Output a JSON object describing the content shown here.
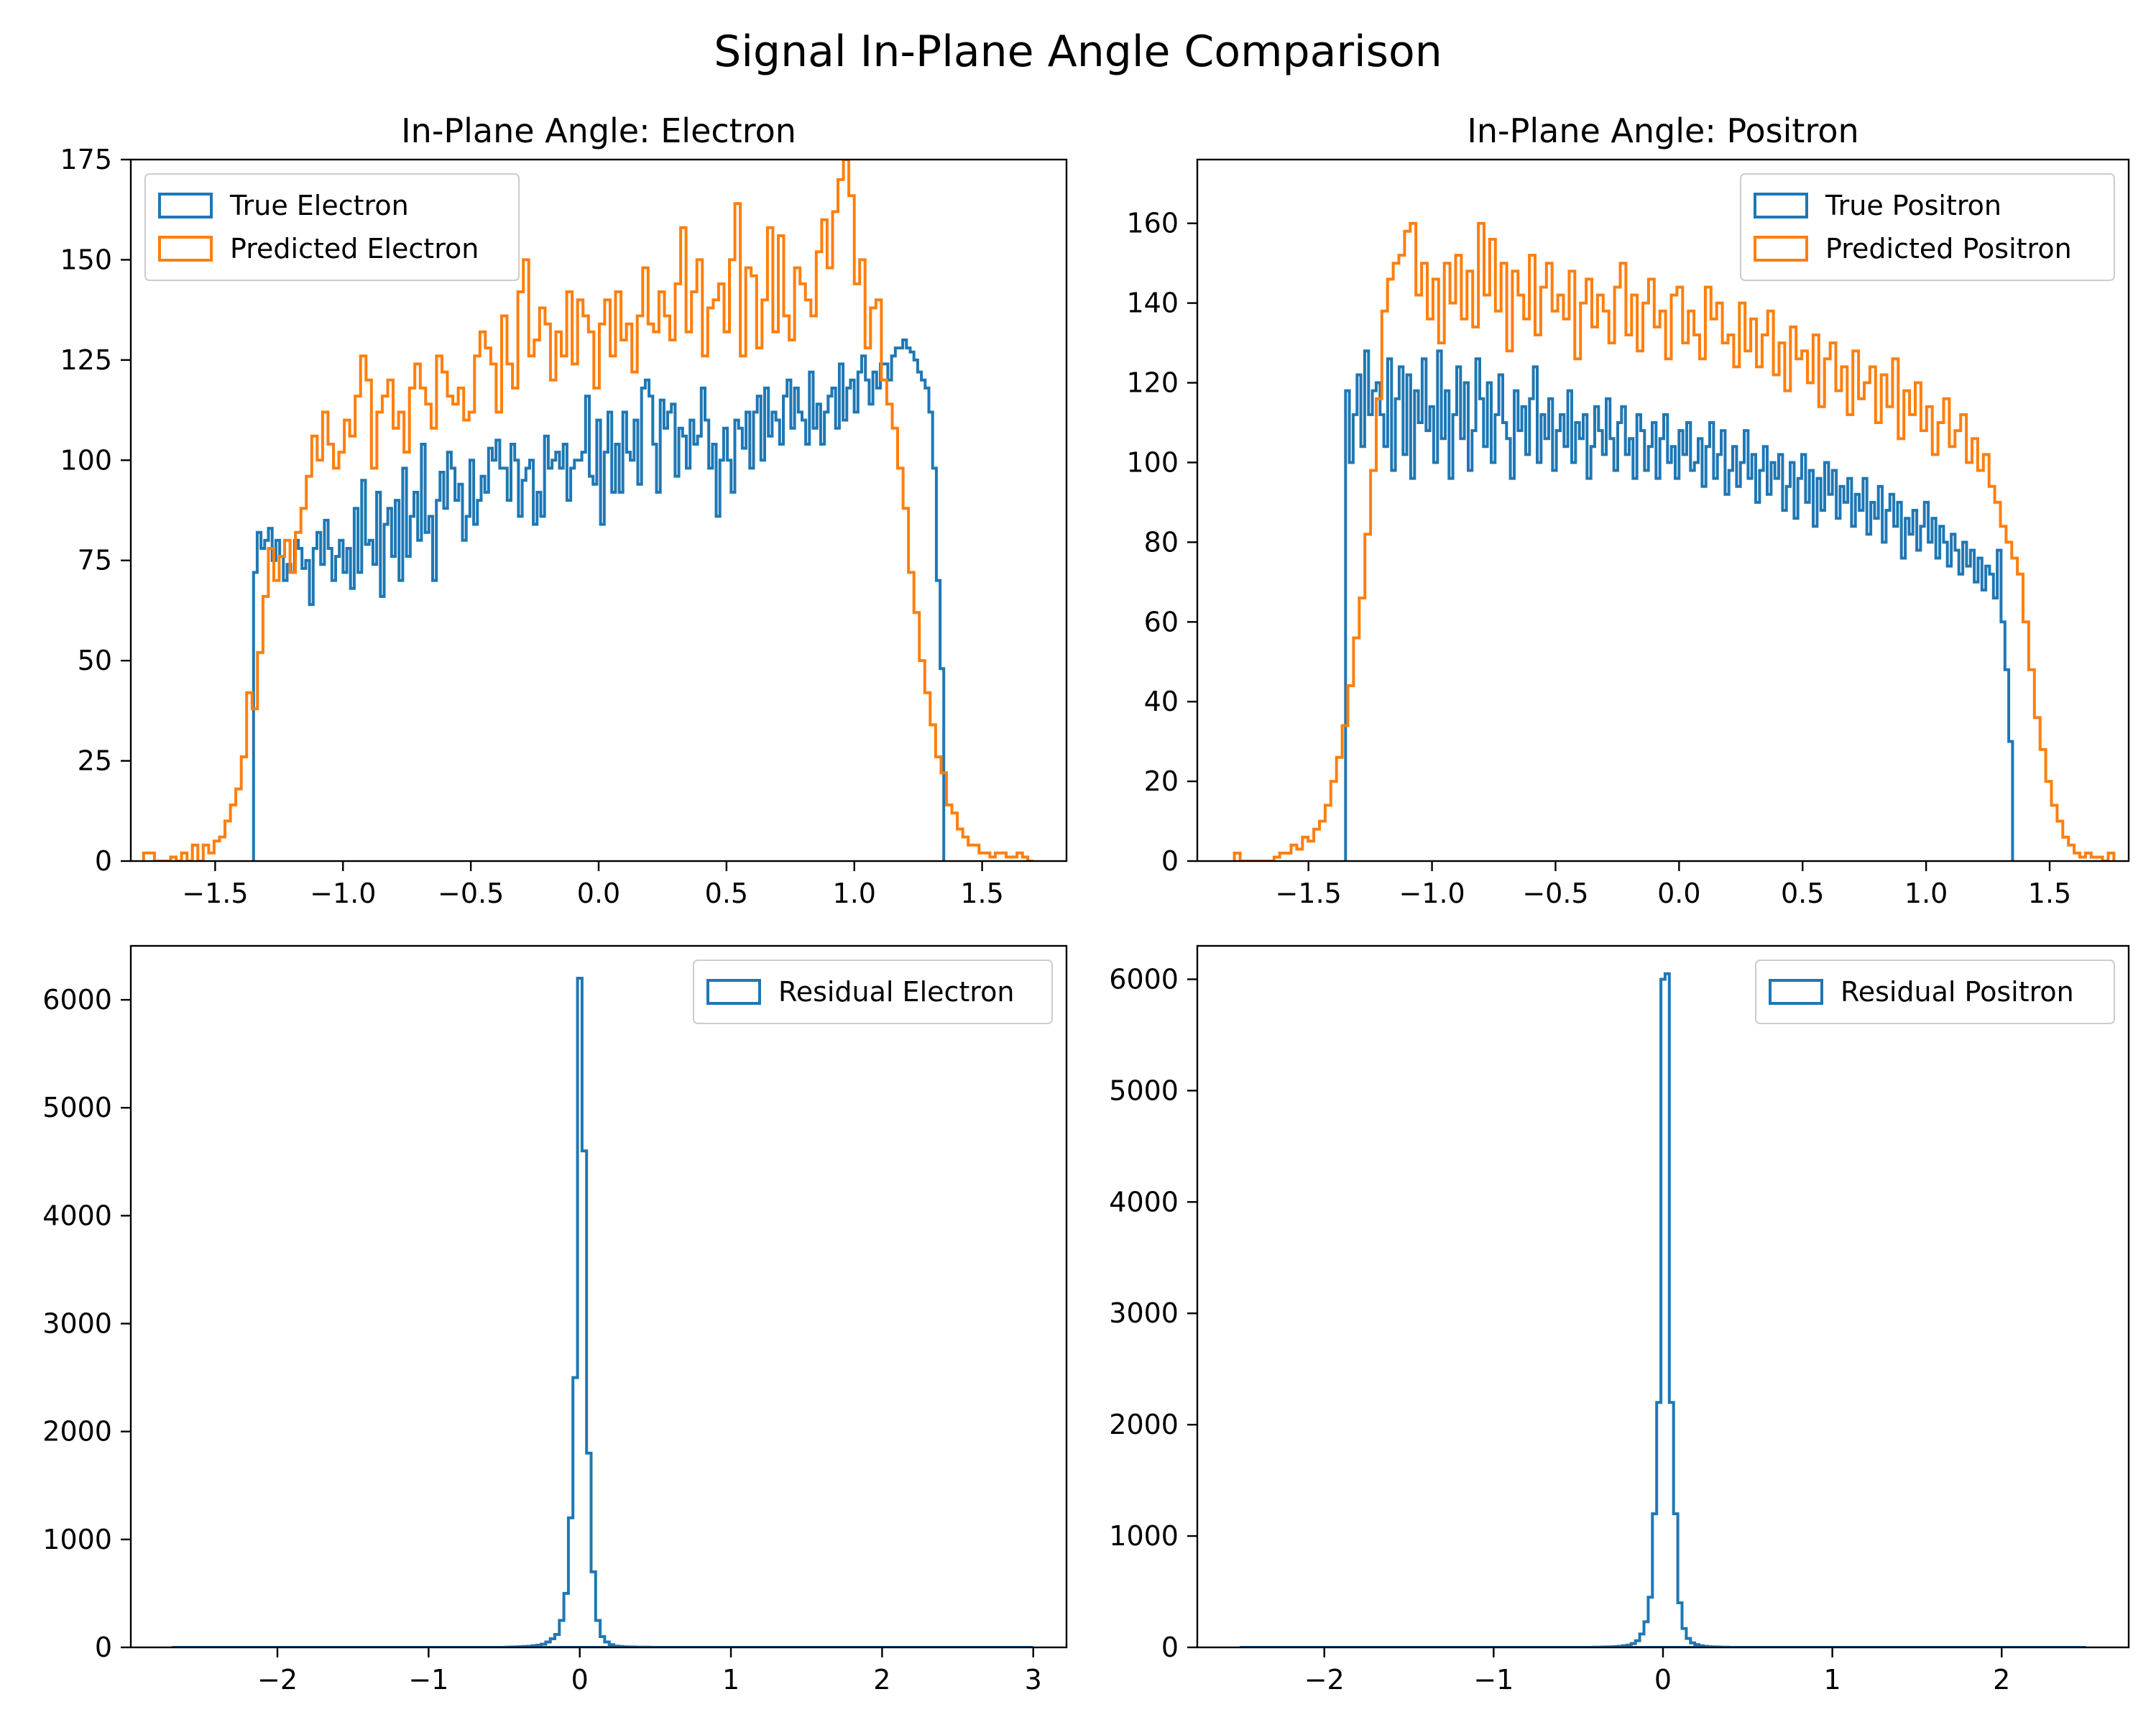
{
  "suptitle": "Signal In-Plane Angle Comparison",
  "colors": {
    "true": "#1f77b4",
    "pred": "#ff7f0e",
    "residual": "#1f77b4"
  },
  "chart_data": [
    {
      "id": "electron",
      "type": "histogram",
      "title": "In-Plane Angle: Electron",
      "xlim": [
        -1.83,
        1.83
      ],
      "ylim": [
        0,
        175
      ],
      "xticks": [
        -1.5,
        -1.0,
        -0.5,
        0.0,
        0.5,
        1.0,
        1.5
      ],
      "xtick_labels": [
        "−1.5",
        "−1.0",
        "−0.5",
        "0.0",
        "0.5",
        "1.0",
        "1.5"
      ],
      "yticks": [
        0,
        25,
        50,
        75,
        100,
        125,
        150,
        175
      ],
      "ytick_labels": [
        "0",
        "25",
        "50",
        "75",
        "100",
        "125",
        "150",
        "175"
      ],
      "legend": "upper-left",
      "series": [
        {
          "name": "True Electron",
          "color_key": "true",
          "x_range": [
            -1.35,
            1.35
          ],
          "counts": [
            72,
            82,
            78,
            80,
            83,
            75,
            80,
            76,
            70,
            74,
            72,
            80,
            78,
            73,
            75,
            64,
            78,
            82,
            74,
            85,
            78,
            70,
            76,
            80,
            72,
            78,
            68,
            88,
            72,
            95,
            79,
            80,
            74,
            92,
            66,
            84,
            88,
            76,
            90,
            70,
            98,
            76,
            86,
            92,
            80,
            104,
            82,
            86,
            70,
            90,
            97,
            88,
            102,
            98,
            90,
            94,
            80,
            86,
            100,
            84,
            90,
            96,
            92,
            103,
            100,
            105,
            98,
            98,
            90,
            104,
            100,
            86,
            95,
            98,
            100,
            84,
            92,
            86,
            106,
            98,
            100,
            102,
            98,
            104,
            90,
            98,
            100,
            100,
            102,
            116,
            96,
            94,
            110,
            84,
            102,
            112,
            92,
            104,
            92,
            112,
            102,
            100,
            110,
            94,
            118,
            120,
            116,
            104,
            92,
            115,
            108,
            112,
            114,
            96,
            108,
            106,
            98,
            110,
            104,
            106,
            118,
            110,
            98,
            104,
            86,
            100,
            108,
            100,
            92,
            110,
            108,
            103,
            112,
            98,
            112,
            116,
            100,
            118,
            106,
            112,
            110,
            104,
            116,
            120,
            108,
            118,
            112,
            110,
            104,
            122,
            108,
            114,
            104,
            112,
            116,
            118,
            108,
            124,
            110,
            118,
            120,
            112,
            122,
            126,
            120,
            114,
            122,
            118,
            124,
            124,
            120,
            126,
            128,
            128,
            130,
            128,
            127,
            125,
            122,
            120,
            118,
            112,
            98,
            70,
            48
          ]
        },
        {
          "name": "Predicted Electron",
          "color_key": "pred",
          "x_range": [
            -1.78,
            1.7
          ],
          "counts": [
            2,
            2,
            0,
            0,
            0,
            1,
            0,
            2,
            0,
            4,
            0,
            4,
            2,
            5,
            6,
            10,
            14,
            18,
            26,
            42,
            38,
            52,
            66,
            78,
            70,
            76,
            80,
            72,
            82,
            88,
            96,
            106,
            100,
            112,
            104,
            98,
            102,
            110,
            106,
            116,
            126,
            120,
            98,
            112,
            116,
            120,
            108,
            112,
            102,
            118,
            124,
            118,
            114,
            108,
            126,
            122,
            116,
            114,
            118,
            110,
            112,
            126,
            132,
            128,
            124,
            112,
            136,
            124,
            118,
            142,
            150,
            126,
            130,
            138,
            134,
            120,
            132,
            126,
            142,
            124,
            140,
            136,
            132,
            118,
            134,
            140,
            126,
            142,
            130,
            134,
            122,
            136,
            148,
            134,
            132,
            142,
            136,
            130,
            144,
            158,
            132,
            142,
            150,
            126,
            138,
            140,
            144,
            132,
            150,
            164,
            126,
            148,
            146,
            128,
            140,
            158,
            132,
            156,
            136,
            130,
            148,
            144,
            140,
            136,
            152,
            160,
            148,
            162,
            170,
            175,
            166,
            144,
            150,
            128,
            138,
            140,
            120,
            114,
            108,
            98,
            88,
            72,
            62,
            50,
            42,
            34,
            26,
            22,
            14,
            12,
            8,
            6,
            4,
            4,
            2,
            2,
            1,
            2,
            2,
            1,
            1,
            2,
            1,
            0
          ]
        }
      ]
    },
    {
      "id": "positron",
      "type": "histogram",
      "title": "In-Plane Angle: Positron",
      "xlim": [
        -1.95,
        1.82
      ],
      "ylim": [
        0,
        176
      ],
      "xticks": [
        -1.5,
        -1.0,
        -0.5,
        0.0,
        0.5,
        1.0,
        1.5
      ],
      "xtick_labels": [
        "−1.5",
        "−1.0",
        "−0.5",
        "0.0",
        "0.5",
        "1.0",
        "1.5"
      ],
      "yticks": [
        0,
        20,
        40,
        60,
        80,
        100,
        120,
        140,
        160
      ],
      "ytick_labels": [
        "0",
        "20",
        "40",
        "60",
        "80",
        "100",
        "120",
        "140",
        "160"
      ],
      "legend": "upper-right",
      "series": [
        {
          "name": "True Positron",
          "color_key": "true",
          "x_range": [
            -1.35,
            1.35
          ],
          "counts": [
            118,
            100,
            112,
            122,
            104,
            128,
            112,
            118,
            120,
            112,
            104,
            126,
            98,
            116,
            124,
            102,
            122,
            96,
            118,
            110,
            126,
            108,
            114,
            100,
            128,
            106,
            118,
            96,
            112,
            124,
            106,
            120,
            98,
            108,
            126,
            116,
            104,
            120,
            100,
            112,
            122,
            110,
            106,
            96,
            118,
            108,
            114,
            102,
            116,
            124,
            100,
            112,
            106,
            116,
            98,
            108,
            112,
            104,
            118,
            100,
            110,
            106,
            112,
            96,
            104,
            114,
            108,
            102,
            116,
            106,
            98,
            110,
            114,
            102,
            106,
            96,
            112,
            108,
            98,
            104,
            110,
            96,
            106,
            112,
            100,
            104,
            96,
            108,
            102,
            110,
            98,
            100,
            106,
            94,
            104,
            110,
            96,
            102,
            108,
            92,
            98,
            104,
            94,
            100,
            108,
            96,
            102,
            90,
            98,
            104,
            92,
            100,
            96,
            102,
            88,
            94,
            100,
            86,
            96,
            102,
            90,
            98,
            84,
            96,
            88,
            100,
            92,
            98,
            86,
            94,
            90,
            96,
            84,
            92,
            88,
            96,
            82,
            90,
            86,
            94,
            80,
            88,
            92,
            84,
            90,
            76,
            86,
            82,
            88,
            78,
            84,
            90,
            80,
            86,
            76,
            84,
            80,
            74,
            82,
            78,
            72,
            80,
            74,
            78,
            70,
            76,
            68,
            74,
            72,
            66,
            78,
            60,
            48,
            30
          ]
        },
        {
          "name": "Predicted Positron",
          "color_key": "pred",
          "x_range": [
            -1.8,
            1.76
          ],
          "counts": [
            2,
            0,
            0,
            0,
            0,
            0,
            0,
            1,
            2,
            2,
            4,
            3,
            6,
            5,
            8,
            10,
            14,
            20,
            26,
            34,
            44,
            56,
            66,
            82,
            98,
            116,
            138,
            146,
            150,
            152,
            158,
            160,
            142,
            150,
            136,
            146,
            130,
            150,
            140,
            152,
            136,
            148,
            134,
            160,
            142,
            156,
            138,
            150,
            128,
            148,
            142,
            136,
            152,
            132,
            144,
            150,
            138,
            142,
            136,
            148,
            126,
            140,
            146,
            134,
            142,
            138,
            130,
            144,
            150,
            132,
            142,
            128,
            140,
            146,
            134,
            138,
            126,
            142,
            144,
            130,
            138,
            132,
            126,
            144,
            136,
            140,
            130,
            132,
            124,
            140,
            128,
            136,
            124,
            132,
            138,
            122,
            130,
            118,
            134,
            126,
            128,
            120,
            132,
            114,
            126,
            130,
            118,
            124,
            112,
            128,
            116,
            120,
            124,
            110,
            122,
            114,
            126,
            106,
            118,
            112,
            120,
            108,
            114,
            102,
            110,
            116,
            104,
            108,
            112,
            100,
            106,
            98,
            102,
            94,
            90,
            84,
            80,
            76,
            72,
            60,
            48,
            36,
            28,
            20,
            14,
            10,
            6,
            4,
            2,
            1,
            2,
            1,
            1,
            0,
            2
          ]
        }
      ]
    },
    {
      "id": "residual-electron",
      "type": "histogram",
      "title": "",
      "xlim": [
        -2.97,
        3.22
      ],
      "ylim": [
        0,
        6500
      ],
      "xticks": [
        -2,
        -1,
        0,
        1,
        2,
        3
      ],
      "xtick_labels": [
        "−2",
        "−1",
        "0",
        "1",
        "2",
        "3"
      ],
      "yticks": [
        0,
        1000,
        2000,
        3000,
        4000,
        5000,
        6000
      ],
      "ytick_labels": [
        "0",
        "1000",
        "2000",
        "3000",
        "4000",
        "5000",
        "6000"
      ],
      "legend": "upper-right",
      "series": [
        {
          "name": "Residual Electron",
          "color_key": "residual",
          "bin_width": 0.03,
          "x": [
            -0.48,
            -0.45,
            -0.42,
            -0.39,
            -0.36,
            -0.33,
            -0.3,
            -0.27,
            -0.24,
            -0.21,
            -0.18,
            -0.15,
            -0.12,
            -0.09,
            -0.06,
            -0.03,
            0.0,
            0.03,
            0.06,
            0.09,
            0.12,
            0.15,
            0.18,
            0.21,
            0.24,
            0.27,
            0.3,
            0.33,
            0.36,
            0.39,
            0.42,
            0.45
          ],
          "counts": [
            2,
            3,
            4,
            6,
            8,
            10,
            15,
            20,
            30,
            50,
            80,
            120,
            250,
            500,
            1200,
            2500,
            6200,
            4600,
            1800,
            700,
            250,
            100,
            50,
            25,
            12,
            8,
            5,
            4,
            3,
            2,
            2,
            1
          ],
          "baseline_range": [
            -2.7,
            3.0
          ]
        }
      ]
    },
    {
      "id": "residual-positron",
      "type": "histogram",
      "title": "",
      "xlim": [
        -2.75,
        2.75
      ],
      "ylim": [
        0,
        6300
      ],
      "xticks": [
        -2,
        -1,
        0,
        1,
        2
      ],
      "xtick_labels": [
        "−2",
        "−1",
        "0",
        "1",
        "2"
      ],
      "yticks": [
        0,
        1000,
        2000,
        3000,
        4000,
        5000,
        6000
      ],
      "ytick_labels": [
        "0",
        "1000",
        "2000",
        "3000",
        "4000",
        "5000",
        "6000"
      ],
      "legend": "upper-right",
      "series": [
        {
          "name": "Residual Positron",
          "color_key": "residual",
          "bin_width": 0.025,
          "x": [
            -0.4,
            -0.375,
            -0.35,
            -0.325,
            -0.3,
            -0.275,
            -0.25,
            -0.225,
            -0.2,
            -0.175,
            -0.15,
            -0.125,
            -0.1,
            -0.075,
            -0.05,
            -0.025,
            0.0,
            0.025,
            0.05,
            0.075,
            0.1,
            0.125,
            0.15,
            0.175,
            0.2,
            0.225,
            0.25,
            0.275,
            0.3,
            0.325,
            0.35,
            0.375
          ],
          "counts": [
            2,
            2,
            3,
            4,
            5,
            7,
            10,
            14,
            20,
            35,
            60,
            120,
            230,
            450,
            1200,
            2200,
            6000,
            6050,
            2200,
            1200,
            400,
            170,
            80,
            40,
            25,
            15,
            10,
            6,
            4,
            3,
            2,
            1
          ],
          "baseline_range": [
            -2.5,
            2.5
          ]
        }
      ]
    }
  ]
}
